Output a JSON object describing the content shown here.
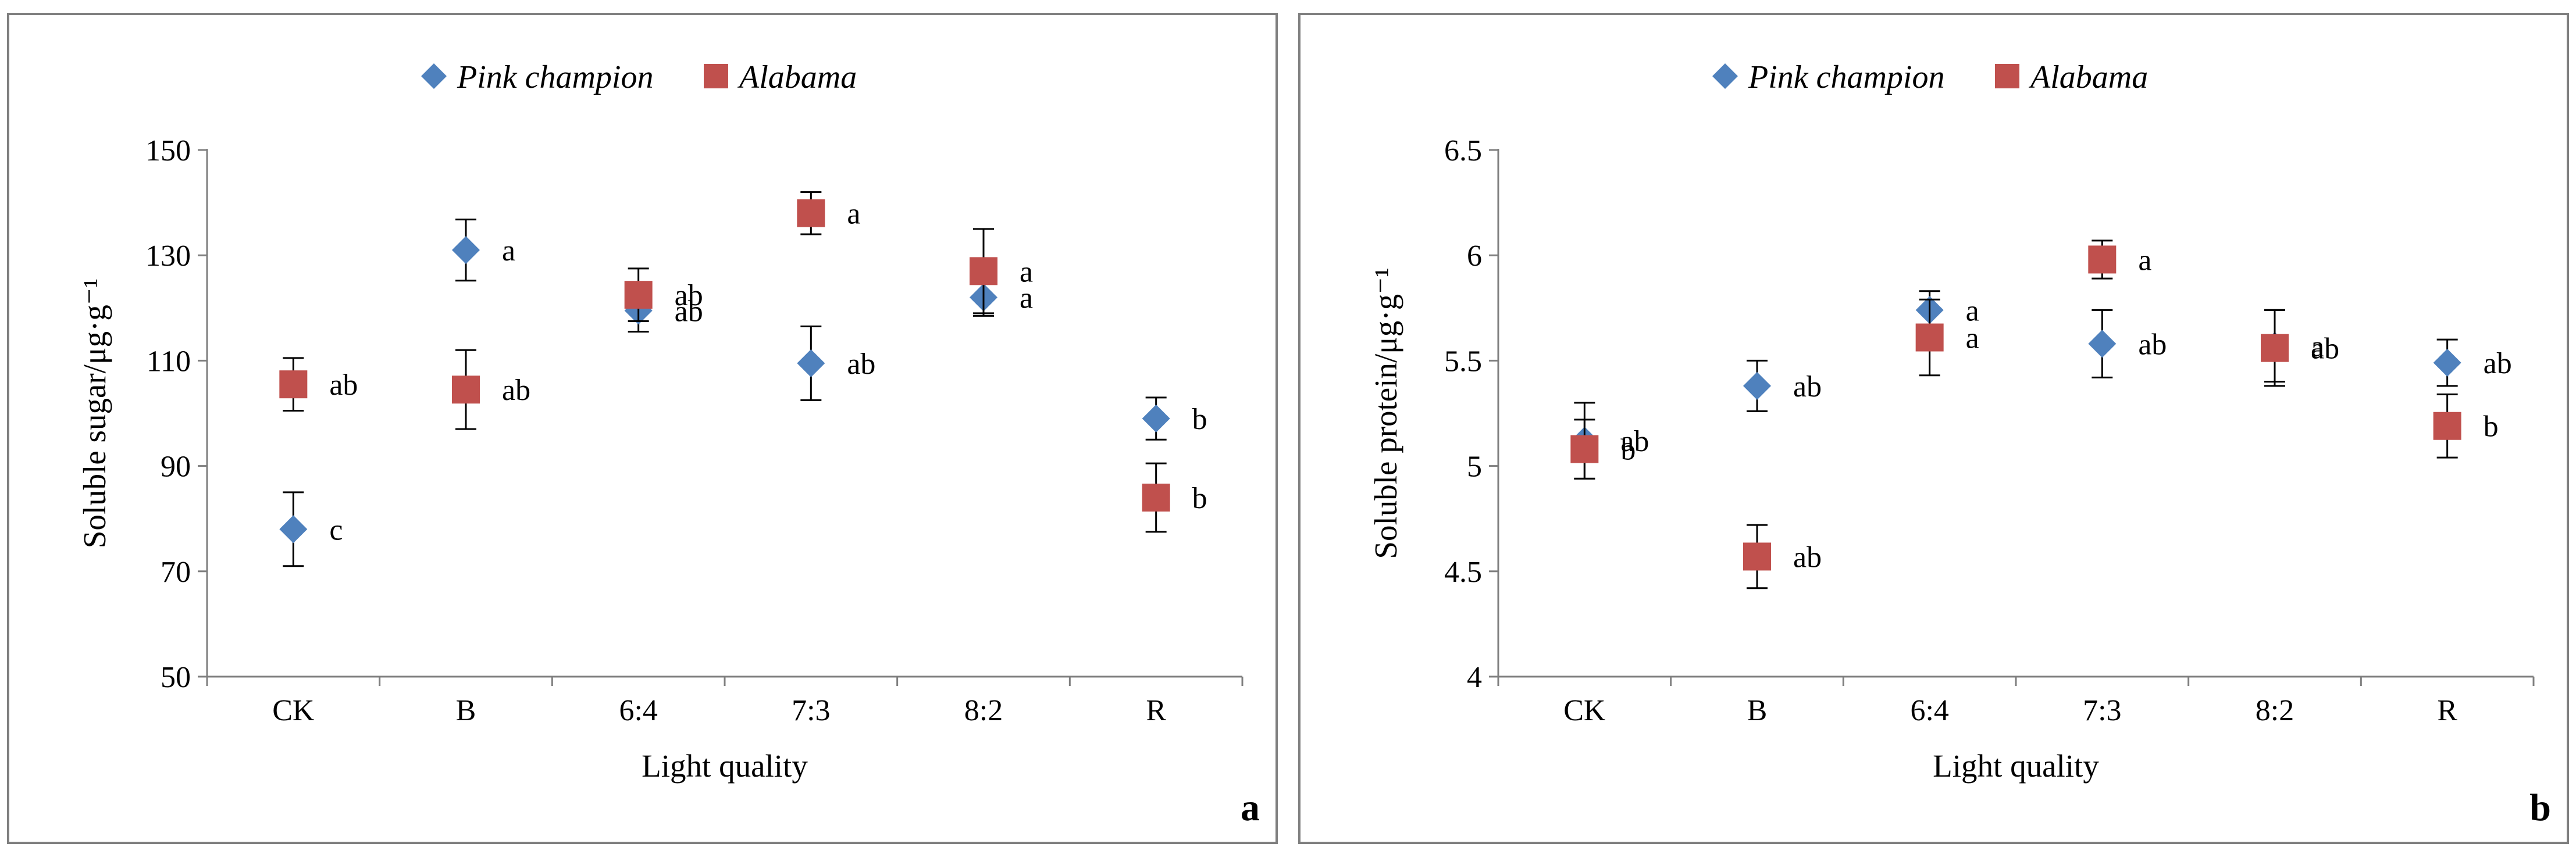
{
  "chart_data": [
    {
      "type": "scatter",
      "panel_label": "a",
      "title": "",
      "xlabel": "Light quality",
      "ylabel": "Soluble sugar/μg·g⁻¹",
      "categories": [
        "CK",
        "B",
        "6:4",
        "7:3",
        "8:2",
        "R"
      ],
      "ylim": [
        50,
        150
      ],
      "yticks": [
        50,
        70,
        90,
        110,
        130,
        150
      ],
      "ytick_labels": [
        "50",
        "70",
        "90",
        "110",
        "130",
        "150"
      ],
      "legend_position": "top-center",
      "series": [
        {
          "name": "Pink champion",
          "marker": "diamond",
          "color": "#4f81bd",
          "values": [
            78,
            131,
            119.5,
            109.5,
            122,
            99
          ],
          "errors": [
            7,
            5.8,
            4,
            7,
            3.5,
            4
          ],
          "letters": [
            "c",
            "a",
            "ab",
            "ab",
            "a",
            "b"
          ]
        },
        {
          "name": "Alabama",
          "marker": "square",
          "color": "#c0504d",
          "values": [
            105.5,
            104.5,
            122.5,
            138,
            127,
            84
          ],
          "errors": [
            5,
            7.5,
            5,
            4,
            8,
            6.5
          ],
          "letters": [
            "ab",
            "ab",
            "ab",
            "a",
            "a",
            "b"
          ]
        }
      ]
    },
    {
      "type": "scatter",
      "panel_label": "b",
      "title": "",
      "xlabel": "Light quality",
      "ylabel": "Soluble protein/μg·g⁻¹",
      "categories": [
        "CK",
        "B",
        "6:4",
        "7:3",
        "8:2",
        "R"
      ],
      "ylim": [
        4,
        6.5
      ],
      "yticks": [
        4,
        4.5,
        5,
        5.5,
        6,
        6.5
      ],
      "ytick_labels": [
        "4",
        "4.5",
        "5",
        "5.5",
        "6",
        "6.5"
      ],
      "legend_position": "top-center",
      "series": [
        {
          "name": "Pink champion",
          "marker": "diamond",
          "color": "#4f81bd",
          "values": [
            5.12,
            5.38,
            5.74,
            5.58,
            5.57,
            5.49
          ],
          "errors": [
            0.18,
            0.12,
            0.09,
            0.16,
            0.17,
            0.11
          ],
          "letters": [
            "ab",
            "ab",
            "a",
            "ab",
            "a",
            "ab"
          ]
        },
        {
          "name": "Alabama",
          "marker": "square",
          "color": "#c0504d",
          "values": [
            5.08,
            4.57,
            5.61,
            5.98,
            5.56,
            5.19
          ],
          "errors": [
            0.14,
            0.15,
            0.18,
            0.09,
            0.18,
            0.15
          ],
          "letters": [
            "b",
            "ab",
            "a",
            "a",
            "ab",
            "b"
          ]
        }
      ]
    }
  ]
}
